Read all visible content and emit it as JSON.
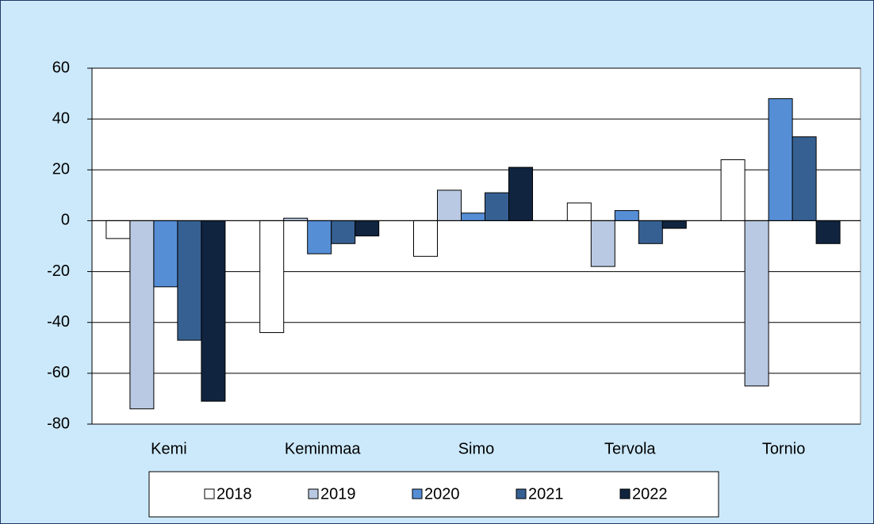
{
  "chart_data": {
    "type": "bar",
    "categories": [
      "Kemi",
      "Keminmaa",
      "Simo",
      "Tervola",
      "Tornio"
    ],
    "series": [
      {
        "name": "2018",
        "color": "#ffffff",
        "values": [
          -7,
          -44,
          -14,
          7,
          24
        ]
      },
      {
        "name": "2019",
        "color": "#b9c9e3",
        "values": [
          -74,
          1,
          12,
          -18,
          -65
        ]
      },
      {
        "name": "2020",
        "color": "#558ed5",
        "values": [
          -26,
          -13,
          3,
          4,
          48
        ]
      },
      {
        "name": "2021",
        "color": "#366092",
        "values": [
          -47,
          -9,
          11,
          -9,
          33
        ]
      },
      {
        "name": "2022",
        "color": "#10243f",
        "values": [
          -71,
          -6,
          21,
          -3,
          -9
        ]
      }
    ],
    "ylim": [
      -80,
      60
    ],
    "yticks": [
      -80,
      -60,
      -40,
      -20,
      0,
      20,
      40,
      60
    ],
    "grid": true,
    "legend": "bottom"
  }
}
